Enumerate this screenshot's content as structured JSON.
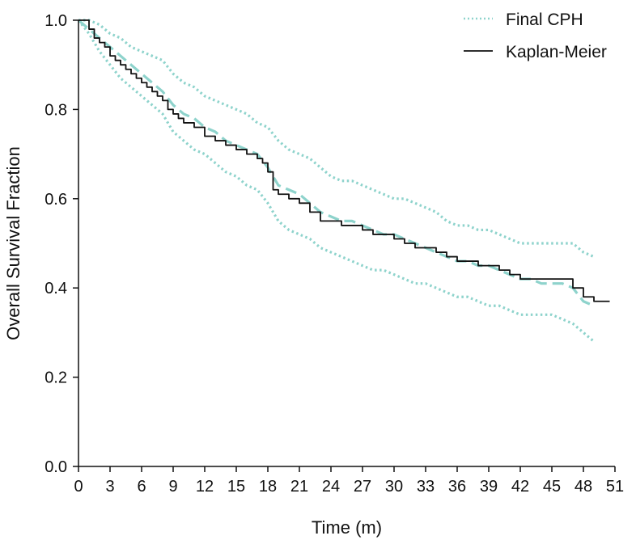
{
  "chart_data": {
    "type": "line",
    "title": "",
    "xlabel": "Time (m)",
    "ylabel": "Overall Survival Fraction",
    "xlim": [
      0,
      51
    ],
    "ylim": [
      0,
      1.0
    ],
    "xticks": [
      0,
      3,
      6,
      9,
      12,
      15,
      18,
      21,
      24,
      27,
      30,
      33,
      36,
      39,
      42,
      45,
      48,
      51
    ],
    "yticks": [
      0.0,
      0.2,
      0.4,
      0.6,
      0.8,
      1.0
    ],
    "xtick_labels": [
      "0",
      "3",
      "6",
      "9",
      "12",
      "15",
      "18",
      "21",
      "24",
      "27",
      "30",
      "33",
      "36",
      "39",
      "42",
      "45",
      "48",
      "51"
    ],
    "ytick_labels": [
      "0.0",
      "0.2",
      "0.4",
      "0.6",
      "0.8",
      "1.0"
    ],
    "grid": false,
    "legend_position": "top-right",
    "legend": [
      {
        "label": "Final CPH",
        "style": "dotted",
        "color": "#8ed3cc"
      },
      {
        "label": "Kaplan-Meier",
        "style": "solid",
        "color": "#111111"
      }
    ],
    "series": [
      {
        "name": "Kaplan-Meier",
        "style": "step",
        "color": "#111111",
        "x": [
          0,
          1,
          1.5,
          2,
          2.5,
          3,
          3.5,
          4,
          4.5,
          5,
          5.5,
          6,
          6.5,
          7,
          7.5,
          8,
          8.5,
          9,
          9.5,
          10,
          11,
          12,
          13,
          14,
          15,
          16,
          17,
          17.5,
          18,
          18.5,
          19,
          20,
          21,
          22,
          23,
          24,
          25,
          26,
          27,
          28,
          29,
          30,
          31,
          32,
          33,
          34,
          35,
          36,
          37,
          38,
          39,
          40,
          41,
          42,
          43,
          44,
          45,
          46,
          47,
          48,
          49,
          50.5
        ],
        "y": [
          1.0,
          0.98,
          0.96,
          0.95,
          0.94,
          0.92,
          0.91,
          0.9,
          0.89,
          0.88,
          0.87,
          0.86,
          0.85,
          0.84,
          0.83,
          0.82,
          0.8,
          0.79,
          0.78,
          0.77,
          0.76,
          0.74,
          0.73,
          0.72,
          0.71,
          0.7,
          0.69,
          0.68,
          0.66,
          0.62,
          0.61,
          0.6,
          0.59,
          0.57,
          0.55,
          0.55,
          0.54,
          0.54,
          0.53,
          0.52,
          0.52,
          0.51,
          0.5,
          0.49,
          0.49,
          0.48,
          0.47,
          0.46,
          0.46,
          0.45,
          0.45,
          0.44,
          0.43,
          0.42,
          0.42,
          0.42,
          0.42,
          0.42,
          0.4,
          0.38,
          0.37,
          0.37
        ]
      },
      {
        "name": "Final CPH",
        "style": "dashed",
        "color": "#8ed3cc",
        "x": [
          0,
          1,
          2,
          3,
          4,
          5,
          6,
          7,
          8,
          9,
          10,
          11,
          12,
          13,
          14,
          15,
          16,
          17,
          18,
          19,
          20,
          21,
          22,
          23,
          24,
          25,
          26,
          27,
          28,
          29,
          30,
          31,
          32,
          33,
          34,
          35,
          36,
          37,
          38,
          39,
          40,
          41,
          42,
          43,
          44,
          45,
          46,
          47,
          48,
          49
        ],
        "y": [
          1.0,
          0.98,
          0.96,
          0.94,
          0.92,
          0.9,
          0.88,
          0.86,
          0.84,
          0.81,
          0.79,
          0.78,
          0.76,
          0.75,
          0.73,
          0.72,
          0.71,
          0.7,
          0.67,
          0.63,
          0.62,
          0.61,
          0.59,
          0.57,
          0.56,
          0.55,
          0.55,
          0.54,
          0.53,
          0.52,
          0.52,
          0.51,
          0.5,
          0.49,
          0.48,
          0.47,
          0.46,
          0.46,
          0.45,
          0.45,
          0.44,
          0.43,
          0.42,
          0.42,
          0.41,
          0.41,
          0.41,
          0.4,
          0.37,
          0.36
        ]
      },
      {
        "name": "",
        "style": "dotted",
        "color": "#8ed3cc",
        "x": [
          0,
          1,
          2,
          3,
          4,
          5,
          6,
          7,
          8,
          9,
          10,
          11,
          12,
          13,
          14,
          15,
          16,
          17,
          18,
          19,
          20,
          21,
          22,
          23,
          24,
          25,
          26,
          27,
          28,
          29,
          30,
          31,
          32,
          33,
          34,
          35,
          36,
          37,
          38,
          39,
          40,
          41,
          42,
          43,
          44,
          45,
          46,
          47,
          48,
          49
        ],
        "y": [
          1.0,
          1.0,
          0.99,
          0.97,
          0.96,
          0.94,
          0.93,
          0.92,
          0.91,
          0.88,
          0.86,
          0.85,
          0.83,
          0.82,
          0.81,
          0.8,
          0.79,
          0.77,
          0.76,
          0.73,
          0.71,
          0.7,
          0.69,
          0.67,
          0.65,
          0.64,
          0.64,
          0.63,
          0.62,
          0.61,
          0.6,
          0.6,
          0.59,
          0.58,
          0.57,
          0.55,
          0.54,
          0.54,
          0.53,
          0.53,
          0.52,
          0.51,
          0.5,
          0.5,
          0.5,
          0.5,
          0.5,
          0.5,
          0.48,
          0.47
        ]
      },
      {
        "name": "",
        "style": "dotted",
        "color": "#8ed3cc",
        "x": [
          0,
          1,
          2,
          3,
          4,
          5,
          6,
          7,
          8,
          9,
          10,
          11,
          12,
          13,
          14,
          15,
          16,
          17,
          18,
          19,
          20,
          21,
          22,
          23,
          24,
          25,
          26,
          27,
          28,
          29,
          30,
          31,
          32,
          33,
          34,
          35,
          36,
          37,
          38,
          39,
          40,
          41,
          42,
          43,
          44,
          45,
          46,
          47,
          48,
          49
        ],
        "y": [
          1.0,
          0.97,
          0.93,
          0.9,
          0.87,
          0.85,
          0.83,
          0.81,
          0.79,
          0.75,
          0.73,
          0.71,
          0.7,
          0.68,
          0.66,
          0.65,
          0.63,
          0.62,
          0.59,
          0.55,
          0.53,
          0.52,
          0.51,
          0.49,
          0.48,
          0.47,
          0.46,
          0.45,
          0.44,
          0.44,
          0.43,
          0.42,
          0.41,
          0.41,
          0.4,
          0.39,
          0.38,
          0.38,
          0.37,
          0.36,
          0.36,
          0.35,
          0.34,
          0.34,
          0.34,
          0.34,
          0.33,
          0.32,
          0.3,
          0.28
        ]
      }
    ]
  }
}
